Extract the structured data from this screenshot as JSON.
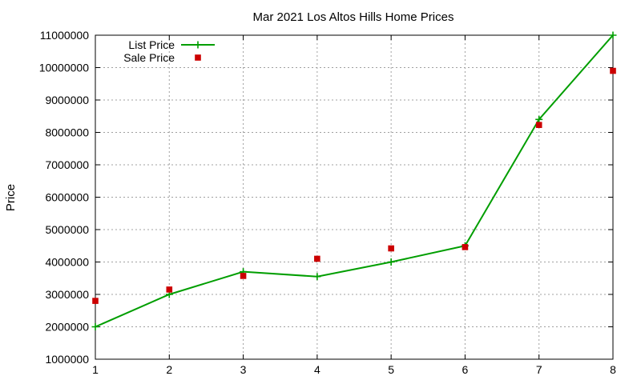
{
  "chart_data": {
    "type": "line",
    "title": "Mar 2021 Los Altos Hills Home Prices",
    "xlabel": "",
    "ylabel": "Price",
    "xlim": [
      1,
      8
    ],
    "ylim": [
      1000000,
      11000000
    ],
    "x_ticks": [
      "1",
      "2",
      "3",
      "4",
      "5",
      "6",
      "7",
      "8"
    ],
    "y_ticks": [
      "1000000",
      "2000000",
      "3000000",
      "4000000",
      "5000000",
      "6000000",
      "7000000",
      "8000000",
      "9000000",
      "10000000",
      "11000000"
    ],
    "grid": true,
    "legend_position": "top-left",
    "series": [
      {
        "name": "List Price",
        "style": "linespoints",
        "marker": "plus",
        "color": "#009e00",
        "x": [
          1,
          2,
          3,
          4,
          5,
          6,
          7,
          8
        ],
        "values": [
          2000000,
          3000000,
          3700000,
          3550000,
          4000000,
          4500000,
          8400000,
          11000000
        ]
      },
      {
        "name": "Sale Price",
        "style": "points",
        "marker": "square",
        "color": "#cc0000",
        "x": [
          1,
          2,
          3,
          4,
          5,
          6,
          7,
          8
        ],
        "values": [
          2800000,
          3150000,
          3570000,
          4100000,
          4420000,
          4460000,
          8230000,
          9900000
        ]
      }
    ]
  }
}
